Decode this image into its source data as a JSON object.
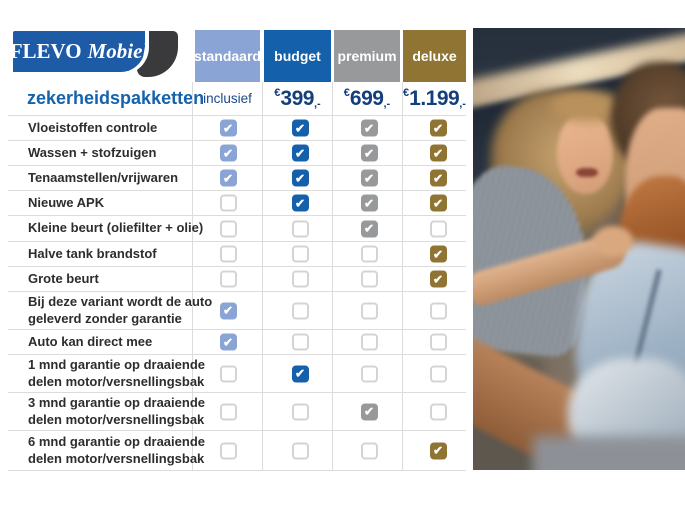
{
  "logo": {
    "brand": "FLEVO",
    "brand_suffix": "Mobiel"
  },
  "table": {
    "title": "zekerheidspakketten",
    "columns": [
      {
        "label": "standaard",
        "price_text": "inclusief",
        "color": "#8aa4d6"
      },
      {
        "label": "budget",
        "currency": "€",
        "amount": "399",
        "suffix": ",-",
        "color": "#1460ab"
      },
      {
        "label": "premium",
        "currency": "€",
        "amount": "699",
        "suffix": ",-",
        "color": "#97999b"
      },
      {
        "label": "deluxe",
        "currency": "€",
        "amount": "1.199",
        "suffix": ",-",
        "color": "#8f7434"
      }
    ],
    "rows": [
      {
        "label": "Vloeistoffen controle",
        "checks": [
          true,
          true,
          true,
          true
        ]
      },
      {
        "label": "Wassen + stofzuigen",
        "checks": [
          true,
          true,
          true,
          true
        ]
      },
      {
        "label": "Tenaamstellen/vrijwaren",
        "checks": [
          true,
          true,
          true,
          true
        ]
      },
      {
        "label": "Nieuwe APK",
        "checks": [
          false,
          true,
          true,
          true
        ]
      },
      {
        "label": "Kleine beurt (oliefilter + olie)",
        "checks": [
          false,
          false,
          true,
          false
        ]
      },
      {
        "label": "Halve tank brandstof",
        "checks": [
          false,
          false,
          false,
          true
        ]
      },
      {
        "label": "Grote beurt",
        "checks": [
          false,
          false,
          false,
          true
        ]
      },
      {
        "label": "Bij deze variant wordt de auto\ngeleverd zonder garantie",
        "checks": [
          true,
          false,
          false,
          false
        ]
      },
      {
        "label": "Auto kan direct mee",
        "checks": [
          true,
          false,
          false,
          false
        ]
      },
      {
        "label": "1 mnd garantie op draaiende\ndelen motor/versnellingsbak",
        "checks": [
          false,
          true,
          false,
          false
        ]
      },
      {
        "label": "3 mnd garantie op draaiende\ndelen motor/versnellingsbak",
        "checks": [
          false,
          false,
          true,
          false
        ]
      },
      {
        "label": "6 mnd garantie op draaiende\ndelen motor/versnellingsbak",
        "checks": [
          false,
          false,
          false,
          true
        ]
      }
    ]
  },
  "colors": {
    "logo_blue": "#1d5ba6",
    "logo_swoosh": "#3a3a3d",
    "title_blue": "#1562ae",
    "price_navy": "#133f7c",
    "label_text": "#2d2d2d",
    "divider": "#dcdcdc",
    "checkbox_border": "#d4d4d4"
  }
}
